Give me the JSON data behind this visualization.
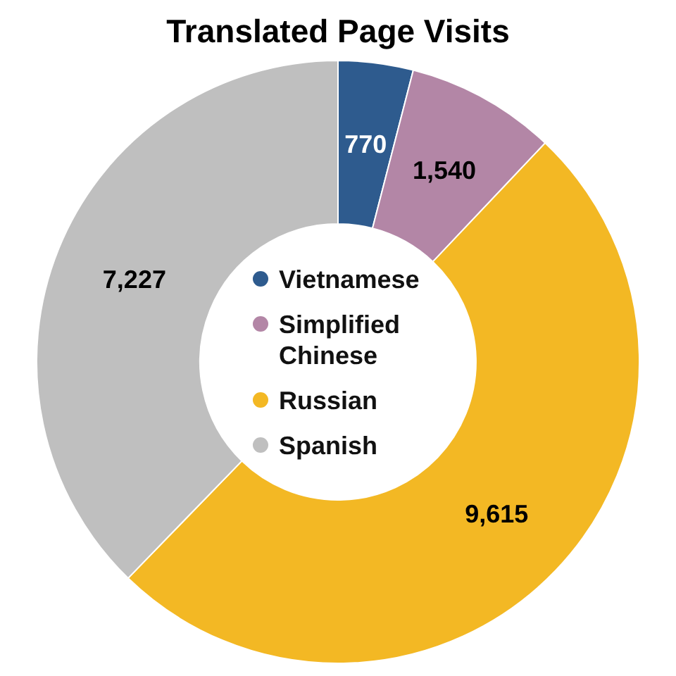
{
  "chart_data": {
    "type": "donut",
    "title": "Translated Page Visits",
    "categories": [
      "Vietnamese",
      "Simplified Chinese",
      "Russian",
      "Spanish"
    ],
    "values": [
      770,
      1540,
      9615,
      7227
    ],
    "colors": [
      "#2e5b8e",
      "#b386a6",
      "#f3b824",
      "#bfbfbf"
    ],
    "value_labels": [
      "770",
      "1,540",
      "9,615",
      "7,227"
    ],
    "legend": "center"
  }
}
